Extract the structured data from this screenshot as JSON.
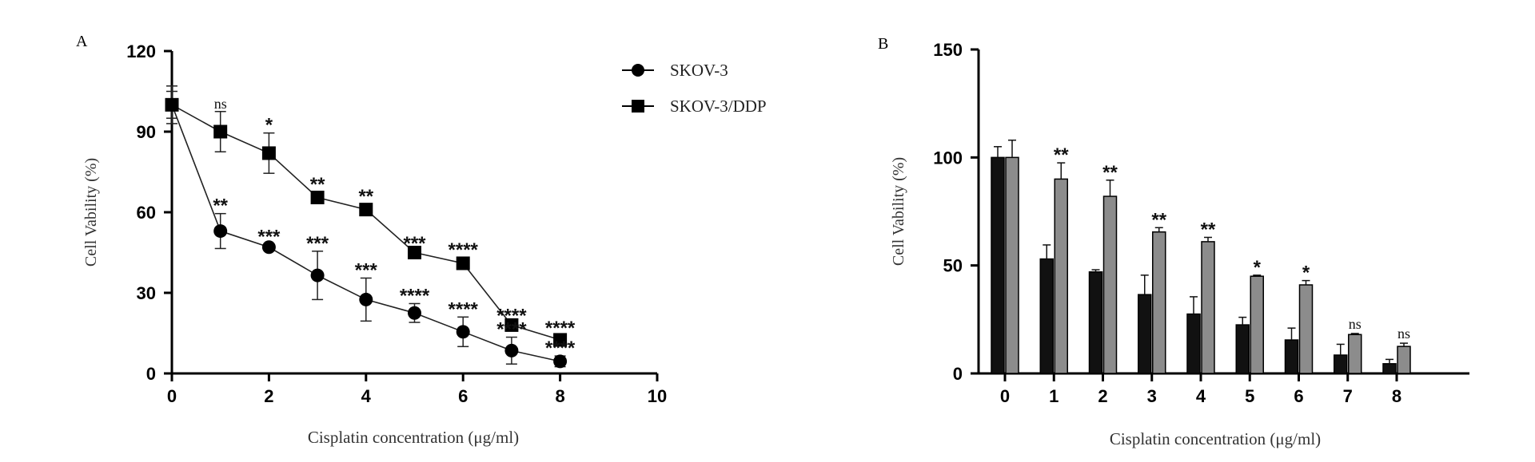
{
  "chart_data": [
    {
      "panel_label": "A",
      "type": "line",
      "xlabel": "Cisplatin concentration (μg/ml)",
      "ylabel": "Cell Vability (%)",
      "xlim": [
        0,
        10
      ],
      "ylim": [
        0,
        120
      ],
      "x_ticks": [
        "0",
        "2",
        "4",
        "6",
        "8",
        "10"
      ],
      "y_ticks": [
        "0",
        "30",
        "60",
        "90",
        "120"
      ],
      "grid": false,
      "legend": "top-right",
      "x": [
        0,
        1,
        2,
        3,
        4,
        5,
        6,
        7,
        8
      ],
      "series": [
        {
          "name": "SKOV-3",
          "marker": "circle",
          "values": [
            100,
            53,
            47,
            36.5,
            27.5,
            22.5,
            15.5,
            8.5,
            4.5
          ],
          "errors": [
            7,
            6.5,
            1,
            9,
            8,
            3.5,
            5.5,
            5,
            2
          ],
          "annotations": [
            "",
            "**",
            "***",
            "***",
            "***",
            "****",
            "****",
            "****",
            "****"
          ]
        },
        {
          "name": "SKOV-3/DDP",
          "marker": "square",
          "values": [
            100,
            90,
            82,
            65.5,
            61,
            45,
            41,
            18,
            12.5
          ],
          "errors": [
            5,
            7.5,
            7.5,
            2,
            2,
            0.5,
            2,
            0.5,
            1.5
          ],
          "annotations": [
            "",
            "ns",
            "*",
            "**",
            "**",
            "***",
            "****",
            "****",
            "****"
          ]
        }
      ]
    },
    {
      "panel_label": "B",
      "type": "bar",
      "xlabel": "Cisplatin concentration (μg/ml)",
      "ylabel": "Cell Vability (%)",
      "ylim": [
        0,
        150
      ],
      "y_ticks": [
        "0",
        "50",
        "100",
        "150"
      ],
      "categories": [
        "0",
        "1",
        "2",
        "3",
        "4",
        "5",
        "6",
        "7",
        "8"
      ],
      "grid": false,
      "series": [
        {
          "color": "#111111",
          "values": [
            100,
            53,
            47,
            36.5,
            27.5,
            22.5,
            15.5,
            8.5,
            4.5
          ],
          "errors": [
            5,
            6.5,
            1,
            9,
            8,
            3.5,
            5.5,
            5,
            2
          ]
        },
        {
          "color": "#8c8c8c",
          "values": [
            100,
            90,
            82,
            65.5,
            61,
            45,
            41,
            18,
            12.5
          ],
          "errors": [
            8,
            7.5,
            7.5,
            2,
            2,
            0.5,
            2,
            0.5,
            1.5
          ]
        }
      ],
      "annotations": [
        "",
        "**",
        "**",
        "**",
        "**",
        "*",
        "*",
        "ns",
        "ns"
      ]
    }
  ]
}
